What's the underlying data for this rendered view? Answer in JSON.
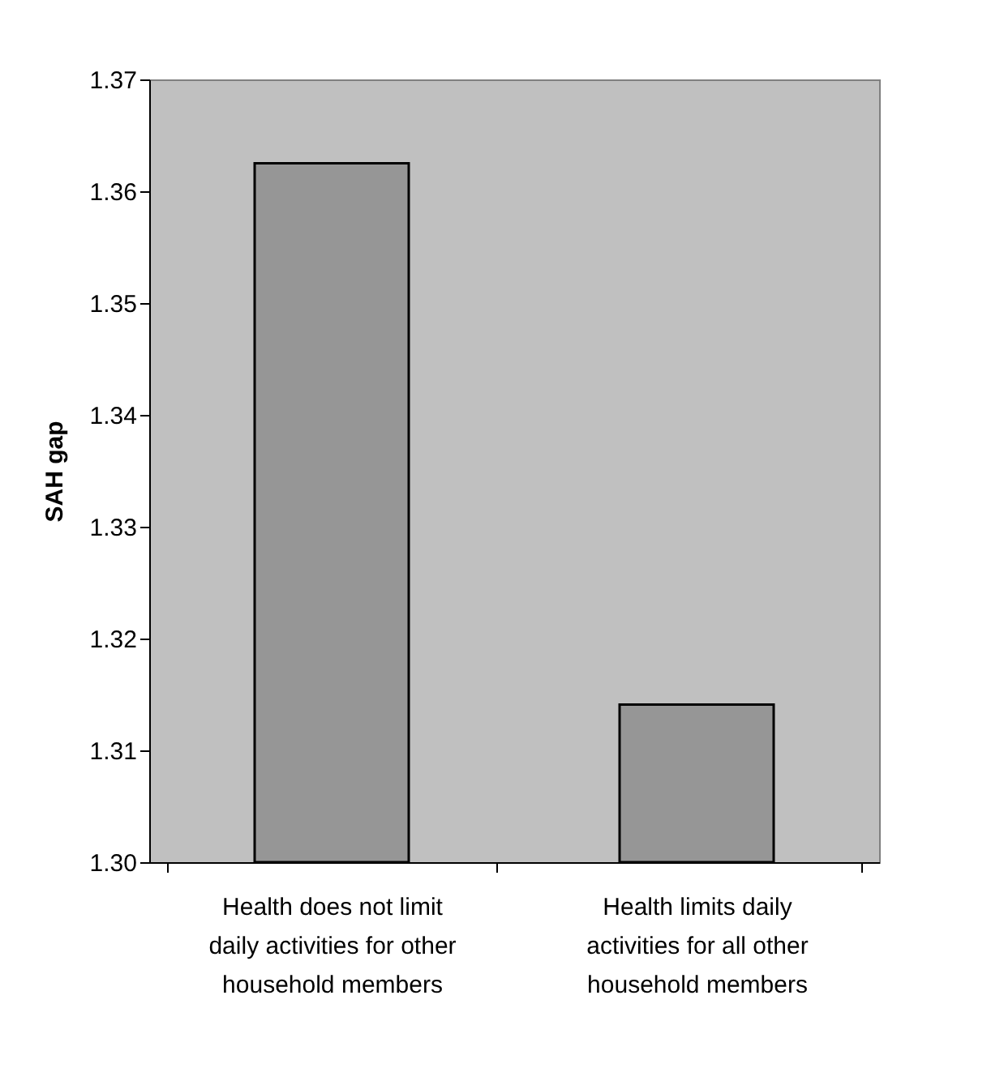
{
  "chart_data": {
    "type": "bar",
    "ylabel": "SAH gap",
    "categories": [
      "Health does not limit\ndaily activities for other\nhousehold members",
      "Health limits daily\nactivities for all other\nhousehold members"
    ],
    "values": [
      1.3625,
      1.3141
    ],
    "color": "#969696",
    "ylim": [
      1.3,
      1.37
    ],
    "yticks": [
      {
        "value": 1.3,
        "label": "1.30"
      },
      {
        "value": 1.31,
        "label": "1.31"
      },
      {
        "value": 1.32,
        "label": "1.32"
      },
      {
        "value": 1.33,
        "label": "1.33"
      },
      {
        "value": 1.34,
        "label": "1.34"
      },
      {
        "value": 1.35,
        "label": "1.35"
      },
      {
        "value": 1.36,
        "label": "1.36"
      },
      {
        "value": 1.37,
        "label": "1.37"
      }
    ],
    "grid": false
  }
}
